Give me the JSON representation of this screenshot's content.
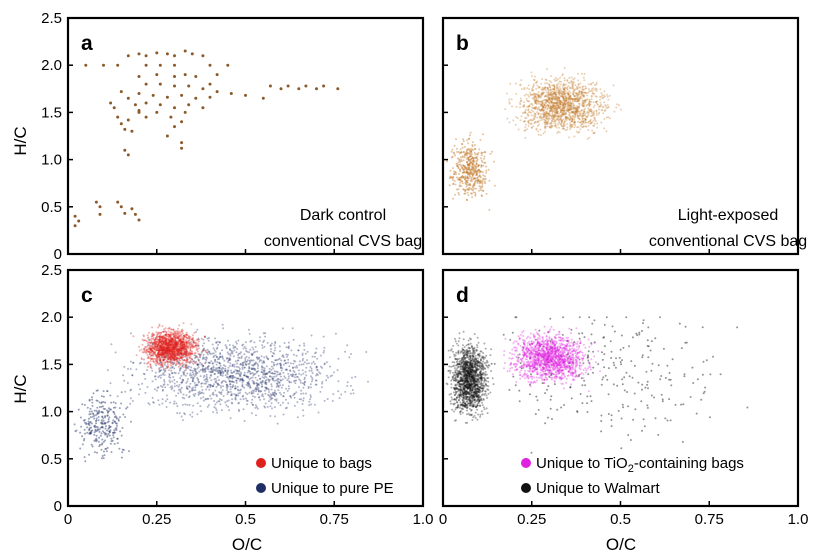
{
  "figure": {
    "y_axis_label": "H/C",
    "x_axis_label": "O/C"
  },
  "chart_data": [
    {
      "type": "scatter",
      "panel": "a",
      "annotation": [
        "Dark control",
        "conventional CVS bag"
      ],
      "xlabel": "",
      "ylabel": "H/C",
      "xlim": [
        0,
        1.0
      ],
      "ylim": [
        0,
        2.5
      ],
      "yticks": [
        "0",
        "0.5",
        "1.0",
        "1.5",
        "2.0",
        "2.5"
      ],
      "xticks": [],
      "grid": false,
      "series": [
        {
          "color": "#8b5a2b",
          "points": [
            [
              0.05,
              2.0
            ],
            [
              0.1,
              2.0
            ],
            [
              0.14,
              2.0
            ],
            [
              0.17,
              2.1
            ],
            [
              0.2,
              2.12
            ],
            [
              0.22,
              2.1
            ],
            [
              0.25,
              2.13
            ],
            [
              0.28,
              2.12
            ],
            [
              0.3,
              2.1
            ],
            [
              0.33,
              2.15
            ],
            [
              0.35,
              2.12
            ],
            [
              0.38,
              2.1
            ],
            [
              0.4,
              2.0
            ],
            [
              0.45,
              2.0
            ],
            [
              0.22,
              2.0
            ],
            [
              0.26,
              2.0
            ],
            [
              0.3,
              2.0
            ],
            [
              0.2,
              1.88
            ],
            [
              0.25,
              1.9
            ],
            [
              0.3,
              1.88
            ],
            [
              0.33,
              1.9
            ],
            [
              0.36,
              1.88
            ],
            [
              0.4,
              1.8
            ],
            [
              0.42,
              1.9
            ],
            [
              0.22,
              1.8
            ],
            [
              0.26,
              1.8
            ],
            [
              0.3,
              1.78
            ],
            [
              0.34,
              1.78
            ],
            [
              0.38,
              1.75
            ],
            [
              0.42,
              1.72
            ],
            [
              0.46,
              1.7
            ],
            [
              0.5,
              1.68
            ],
            [
              0.55,
              1.65
            ],
            [
              0.2,
              1.7
            ],
            [
              0.24,
              1.68
            ],
            [
              0.28,
              1.66
            ],
            [
              0.32,
              1.68
            ],
            [
              0.36,
              1.65
            ],
            [
              0.4,
              1.66
            ],
            [
              0.22,
              1.6
            ],
            [
              0.26,
              1.58
            ],
            [
              0.3,
              1.55
            ],
            [
              0.34,
              1.58
            ],
            [
              0.38,
              1.55
            ],
            [
              0.25,
              1.5
            ],
            [
              0.29,
              1.45
            ],
            [
              0.32,
              1.4
            ],
            [
              0.33,
              1.5
            ],
            [
              0.2,
              1.52
            ],
            [
              0.3,
              1.35
            ],
            [
              0.28,
              1.25
            ],
            [
              0.32,
              1.18
            ],
            [
              0.32,
              1.12
            ],
            [
              0.12,
              1.6
            ],
            [
              0.13,
              1.55
            ],
            [
              0.15,
              1.72
            ],
            [
              0.17,
              1.65
            ],
            [
              0.19,
              1.58
            ],
            [
              0.2,
              1.5
            ],
            [
              0.22,
              1.45
            ],
            [
              0.14,
              1.45
            ],
            [
              0.15,
              1.38
            ],
            [
              0.16,
              1.32
            ],
            [
              0.17,
              1.42
            ],
            [
              0.18,
              1.3
            ],
            [
              0.16,
              1.1
            ],
            [
              0.17,
              1.05
            ],
            [
              0.57,
              1.78
            ],
            [
              0.6,
              1.75
            ],
            [
              0.62,
              1.78
            ],
            [
              0.65,
              1.75
            ],
            [
              0.67,
              1.78
            ],
            [
              0.7,
              1.75
            ],
            [
              0.72,
              1.78
            ],
            [
              0.76,
              1.75
            ],
            [
              0.02,
              0.4
            ],
            [
              0.02,
              0.3
            ],
            [
              0.03,
              0.35
            ],
            [
              0.08,
              0.55
            ],
            [
              0.09,
              0.5
            ],
            [
              0.09,
              0.42
            ],
            [
              0.14,
              0.55
            ],
            [
              0.15,
              0.5
            ],
            [
              0.16,
              0.43
            ],
            [
              0.18,
              0.48
            ],
            [
              0.19,
              0.42
            ],
            [
              0.2,
              0.36
            ]
          ]
        }
      ]
    },
    {
      "type": "scatter",
      "panel": "b",
      "annotation": [
        "Light-exposed",
        "conventional CVS bag"
      ],
      "xlabel": "",
      "ylabel": "",
      "xlim": [
        0,
        1.0
      ],
      "ylim": [
        0,
        2.5
      ],
      "xticks": [],
      "yticks": [],
      "grid": false,
      "series": [
        {
          "color": "#c47a2c",
          "clouds": [
            {
              "x_range": [
                0.15,
                0.52
              ],
              "y_range": [
                1.15,
                2.0
              ],
              "density": "high"
            },
            {
              "x_range": [
                0.0,
                0.15
              ],
              "y_range": [
                0.45,
                1.35
              ],
              "density": "medium"
            }
          ]
        }
      ]
    },
    {
      "type": "scatter",
      "panel": "c",
      "xlabel": "O/C",
      "ylabel": "H/C",
      "xlim": [
        0,
        1.0
      ],
      "ylim": [
        0,
        2.5
      ],
      "xticks": [
        "0",
        "0.25",
        "0.5",
        "0.75",
        "1.0"
      ],
      "yticks": [
        "0",
        "0.5",
        "1.0",
        "1.5",
        "2.0",
        "2.5"
      ],
      "grid": false,
      "legend_position": "bottom-right",
      "series": [
        {
          "name": "Unique to pure PE",
          "color": "#1f2f66",
          "clouds": [
            {
              "x_range": [
                0.05,
                0.9
              ],
              "y_range": [
                0.8,
                2.0
              ],
              "density": "high"
            },
            {
              "x_range": [
                0.0,
                0.2
              ],
              "y_range": [
                0.35,
                1.4
              ],
              "density": "low"
            }
          ]
        },
        {
          "name": "Unique to bags",
          "color": "#e0201e",
          "clouds": [
            {
              "x_range": [
                0.18,
                0.4
              ],
              "y_range": [
                1.4,
                1.95
              ],
              "density": "high"
            }
          ]
        }
      ]
    },
    {
      "type": "scatter",
      "panel": "d",
      "xlabel": "O/C",
      "ylabel": "",
      "xlim": [
        0,
        1.0
      ],
      "ylim": [
        0,
        2.5
      ],
      "xticks": [
        "0",
        "0.25",
        "0.5",
        "0.75",
        "1.0"
      ],
      "yticks": [],
      "grid": false,
      "legend_position": "bottom-right",
      "series": [
        {
          "name": "Unique to Walmart",
          "color": "#111111",
          "clouds": [
            {
              "x_range": [
                0.0,
                0.95
              ],
              "y_range": [
                0.4,
                2.4
              ],
              "density": "low"
            },
            {
              "x_range": [
                0.0,
                0.15
              ],
              "y_range": [
                0.8,
                1.9
              ],
              "density": "high"
            }
          ]
        },
        {
          "name_parts": [
            "Unique to TiO",
            "2",
            "-containing bags"
          ],
          "color": "#e020e0",
          "clouds": [
            {
              "x_range": [
                0.15,
                0.45
              ],
              "y_range": [
                1.2,
                1.95
              ],
              "density": "high"
            }
          ]
        }
      ]
    }
  ]
}
